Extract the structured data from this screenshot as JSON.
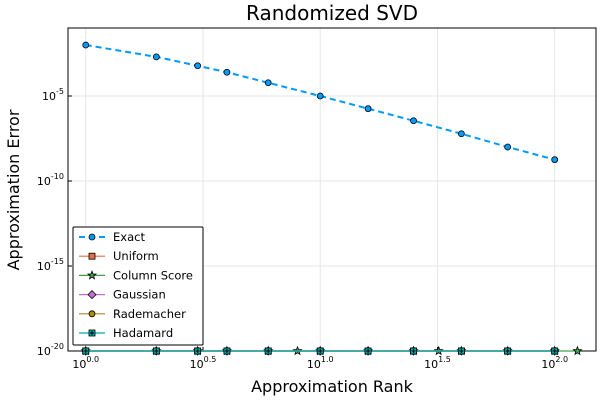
{
  "chart_data": {
    "type": "line",
    "title": "Randomized SVD",
    "xlabel": "Approximation Rank",
    "ylabel": "Approximation Error",
    "x_scale": "log10",
    "y_scale": "log10",
    "xlim": [
      0.84,
      150
    ],
    "ylim": [
      1e-20,
      0.1
    ],
    "x_ticks": [
      {
        "exp": "0.0",
        "value": 1
      },
      {
        "exp": "0.5",
        "value": 3.1623
      },
      {
        "exp": "1.0",
        "value": 10
      },
      {
        "exp": "1.5",
        "value": 31.623
      },
      {
        "exp": "2.0",
        "value": 100
      }
    ],
    "y_ticks": [
      {
        "exp": "-20",
        "value": 1e-20
      },
      {
        "exp": "-15",
        "value": 1e-15
      },
      {
        "exp": "-10",
        "value": 1e-10
      },
      {
        "exp": "-5",
        "value": 1e-05
      }
    ],
    "grid": true,
    "legend_position": "bottom-left",
    "series": [
      {
        "name": "Exact",
        "color": "#009af9",
        "marker": "circle",
        "dashed": true,
        "x": [
          1,
          2,
          3,
          4,
          6,
          10,
          16,
          25,
          40,
          63,
          100
        ],
        "y": [
          0.01,
          0.002,
          0.0006,
          0.00025,
          6e-05,
          1e-05,
          1.8e-06,
          3.5e-07,
          6e-08,
          1e-08,
          1.8e-09
        ]
      },
      {
        "name": "Uniform",
        "color": "#e26f46",
        "marker": "square",
        "dashed": false,
        "x": [
          1,
          2,
          3,
          4,
          6,
          10,
          16,
          25,
          40,
          63,
          100
        ],
        "y": [
          1e-20,
          1e-20,
          1e-20,
          1e-20,
          1e-20,
          1e-20,
          1e-20,
          1e-20,
          1e-20,
          1e-20,
          1e-20
        ]
      },
      {
        "name": "Column Score",
        "color": "#3da44d",
        "marker": "star",
        "dashed": false,
        "x": [
          1,
          2,
          3,
          4,
          6,
          8,
          10,
          16,
          25,
          32,
          40,
          63,
          100,
          125
        ],
        "y": [
          1e-20,
          1e-20,
          1e-20,
          1e-20,
          1e-20,
          1e-20,
          1e-20,
          1e-20,
          1e-20,
          1e-20,
          1e-20,
          1e-20,
          1e-20,
          1e-20
        ]
      },
      {
        "name": "Gaussian",
        "color": "#c271d2",
        "marker": "diamond",
        "dashed": false,
        "x": [
          1,
          2,
          3,
          4,
          6,
          10,
          16,
          25,
          40,
          63,
          100
        ],
        "y": [
          1e-20,
          1e-20,
          1e-20,
          1e-20,
          1e-20,
          1e-20,
          1e-20,
          1e-20,
          1e-20,
          1e-20,
          1e-20
        ]
      },
      {
        "name": "Rademacher",
        "color": "#ac8d18",
        "marker": "circle",
        "dashed": false,
        "x": [
          1,
          2,
          3,
          4,
          6,
          10,
          16,
          25,
          40,
          63,
          100
        ],
        "y": [
          1e-20,
          1e-20,
          1e-20,
          1e-20,
          1e-20,
          1e-20,
          1e-20,
          1e-20,
          1e-20,
          1e-20,
          1e-20
        ]
      },
      {
        "name": "Hadamard",
        "color": "#00a9ad",
        "marker": "plus-square",
        "dashed": false,
        "x": [
          1,
          2,
          3,
          4,
          6,
          10,
          16,
          25,
          40,
          63,
          100
        ],
        "y": [
          1e-20,
          1e-20,
          1e-20,
          1e-20,
          1e-20,
          1e-20,
          1e-20,
          1e-20,
          1e-20,
          1e-20,
          1e-20
        ]
      }
    ]
  }
}
